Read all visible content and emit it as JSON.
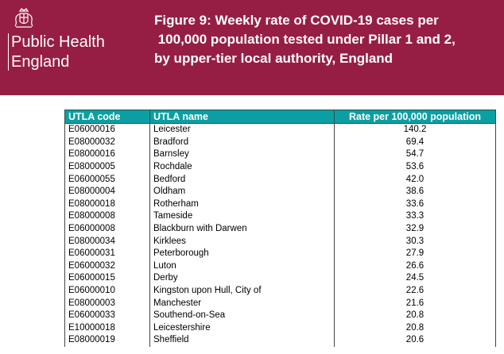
{
  "logo": {
    "line1": "Public Health",
    "line2": "England",
    "crest_icon": "royal-crest-icon"
  },
  "title": {
    "line1": "Figure 9: Weekly rate of COVID-19 cases per",
    "line2": " 100,000 population tested under Pillar 1 and 2,",
    "line3": "by upper-tier local authority, England"
  },
  "table": {
    "headers": [
      "UTLA code",
      "UTLA name",
      "Rate per 100,000 population"
    ],
    "rows": [
      {
        "code": "E06000016",
        "name": "Leicester",
        "rate": "140.2"
      },
      {
        "code": "E08000032",
        "name": "Bradford",
        "rate": "69.4"
      },
      {
        "code": "E08000016",
        "name": "Barnsley",
        "rate": "54.7"
      },
      {
        "code": "E08000005",
        "name": "Rochdale",
        "rate": "53.6"
      },
      {
        "code": "E06000055",
        "name": "Bedford",
        "rate": "42.0"
      },
      {
        "code": "E08000004",
        "name": "Oldham",
        "rate": "38.6"
      },
      {
        "code": "E08000018",
        "name": "Rotherham",
        "rate": "33.6"
      },
      {
        "code": "E08000008",
        "name": "Tameside",
        "rate": "33.3"
      },
      {
        "code": "E06000008",
        "name": "Blackburn with Darwen",
        "rate": "32.9"
      },
      {
        "code": "E08000034",
        "name": "Kirklees",
        "rate": "30.3"
      },
      {
        "code": "E06000031",
        "name": "Peterborough",
        "rate": "27.9"
      },
      {
        "code": "E06000032",
        "name": "Luton",
        "rate": "26.6"
      },
      {
        "code": "E06000015",
        "name": "Derby",
        "rate": "24.5"
      },
      {
        "code": "E06000010",
        "name": "Kingston upon Hull, City of",
        "rate": "22.6"
      },
      {
        "code": "E08000003",
        "name": "Manchester",
        "rate": "21.6"
      },
      {
        "code": "E06000033",
        "name": "Southend-on-Sea",
        "rate": "20.8"
      },
      {
        "code": "E10000018",
        "name": "Leicestershire",
        "rate": "20.8"
      },
      {
        "code": "E08000019",
        "name": "Sheffield",
        "rate": "20.6"
      }
    ]
  },
  "colors": {
    "banner": "#961e44",
    "table_header": "#0b9fa5"
  }
}
